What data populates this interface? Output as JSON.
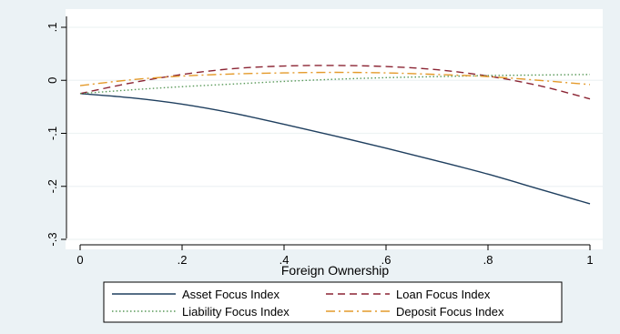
{
  "chart_data": {
    "type": "line",
    "title": "",
    "xlabel": "Foreign Ownership",
    "ylabel": "",
    "xlim": [
      0,
      1
    ],
    "ylim": [
      -0.3,
      0.1
    ],
    "x_ticks": [
      0,
      0.2,
      0.4,
      0.6,
      0.8,
      1
    ],
    "x_tick_labels": [
      "0",
      ".2",
      ".4",
      ".6",
      ".8",
      "1"
    ],
    "y_ticks": [
      -0.3,
      -0.2,
      -0.1,
      0,
      0.1
    ],
    "y_tick_labels": [
      "-.3",
      "-.2",
      "-.1",
      "0",
      ".1"
    ],
    "grid": "horizontal",
    "legend_position": "bottom",
    "x": [
      0,
      0.1,
      0.2,
      0.3,
      0.4,
      0.5,
      0.6,
      0.7,
      0.8,
      0.9,
      1
    ],
    "series": [
      {
        "name": "Asset Focus Index",
        "color": "#1f3f5f",
        "dash": "solid",
        "values": [
          -0.025,
          -0.033,
          -0.045,
          -0.062,
          -0.083,
          -0.105,
          -0.128,
          -0.152,
          -0.177,
          -0.205,
          -0.233
        ]
      },
      {
        "name": "Loan Focus Index",
        "color": "#8b2433",
        "dash": "dashed",
        "values": [
          -0.025,
          -0.005,
          0.011,
          0.022,
          0.027,
          0.028,
          0.026,
          0.02,
          0.008,
          -0.01,
          -0.035
        ]
      },
      {
        "name": "Liability Focus Index",
        "color": "#5a9a5a",
        "dash": "dotted",
        "values": [
          -0.025,
          -0.018,
          -0.012,
          -0.007,
          -0.002,
          0.002,
          0.005,
          0.007,
          0.009,
          0.01,
          0.011
        ]
      },
      {
        "name": "Deposit Focus Index",
        "color": "#e49a2a",
        "dash": "dashdot",
        "values": [
          -0.01,
          0.001,
          0.008,
          0.012,
          0.014,
          0.015,
          0.014,
          0.011,
          0.007,
          0.0,
          -0.008
        ]
      }
    ]
  }
}
